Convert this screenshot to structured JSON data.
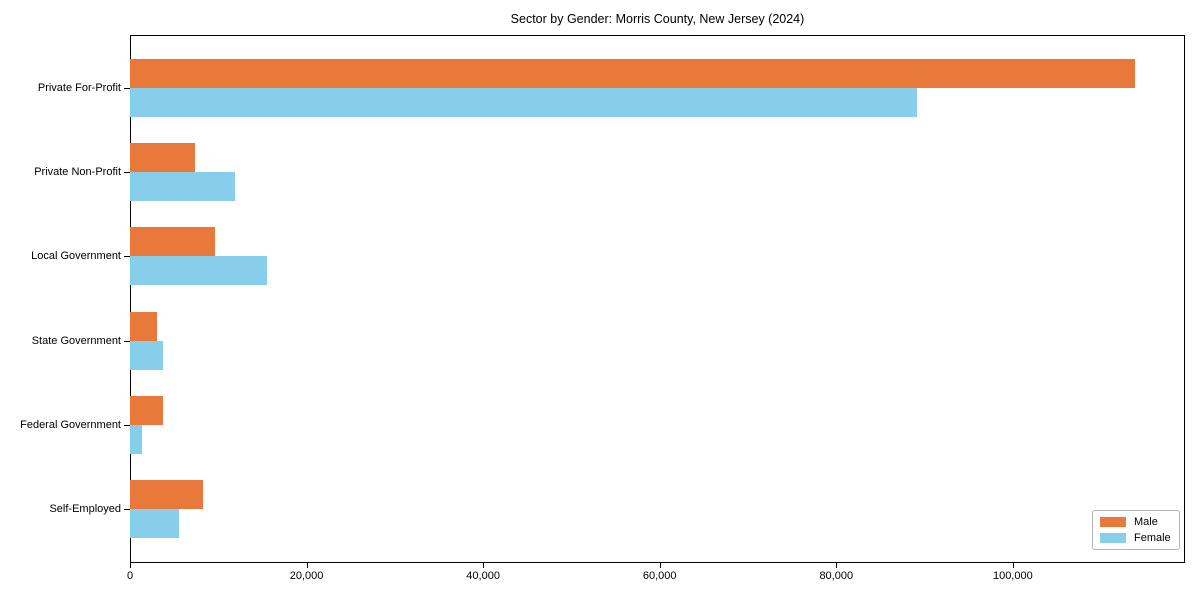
{
  "chart_data": {
    "type": "bar",
    "orientation": "horizontal",
    "title": "Sector by Gender: Morris County, New Jersey (2024)",
    "categories": [
      "Private For-Profit",
      "Private Non-Profit",
      "Local Government",
      "State Government",
      "Federal Government",
      "Self-Employed"
    ],
    "series": [
      {
        "name": "Male",
        "color": "#E8793B",
        "values": [
          113800,
          7400,
          9600,
          3100,
          3700,
          8300
        ]
      },
      {
        "name": "Female",
        "color": "#87CEEB",
        "values": [
          89100,
          11900,
          15500,
          3700,
          1400,
          5500
        ]
      }
    ],
    "xlim": [
      0,
      119500
    ],
    "x_ticks": [
      {
        "value": 0,
        "label": "0"
      },
      {
        "value": 20000,
        "label": "20,000"
      },
      {
        "value": 40000,
        "label": "40,000"
      },
      {
        "value": 60000,
        "label": "60,000"
      },
      {
        "value": 80000,
        "label": "80,000"
      },
      {
        "value": 100000,
        "label": "100,000"
      }
    ],
    "grid": false,
    "legend": {
      "position": "lower right"
    },
    "colors": {
      "spine": "#000000",
      "background": "#ffffff"
    }
  }
}
